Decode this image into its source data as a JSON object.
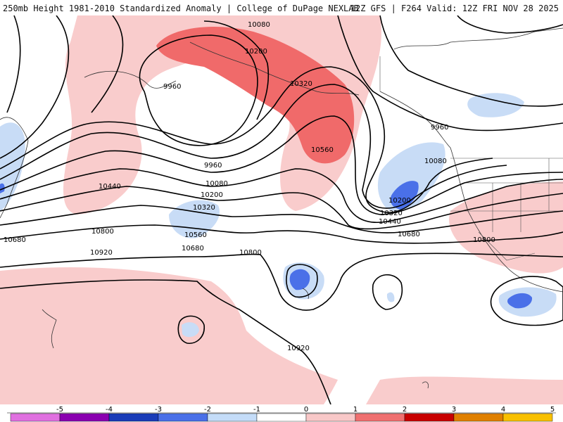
{
  "header": {
    "left_title": "250mb Height 1981-2010 Standardized Anomaly | College of DuPage NEXLAB",
    "right_title": "12Z GFS | F264 Valid: 12Z FRI NOV 28 2025"
  },
  "contour_labels": [
    "10080",
    "10200",
    "10320",
    "9960",
    "10560",
    "9960",
    "10080",
    "10200",
    "10320",
    "10440",
    "10560",
    "10680",
    "10800",
    "10920",
    "10800",
    "9960",
    "10080",
    "10200",
    "10320",
    "10440",
    "10680",
    "10800",
    "10680",
    "10920"
  ],
  "colorbar": {
    "ticks": [
      "-5",
      "-4",
      "-3",
      "-2",
      "-1",
      "0",
      "1",
      "2",
      "3",
      "4",
      "5"
    ],
    "colors": {
      "neg5": "#e070e0",
      "neg4": "#8a00b0",
      "neg3": "#1a3cb8",
      "neg2": "#4a70e8",
      "neg1": "#c4dcf8",
      "zero": "#ffffff",
      "pos1": "#f8c8c8",
      "pos2": "#f07070",
      "pos3": "#c80000",
      "pos4": "#e08000",
      "pos5": "#f8c000"
    }
  }
}
